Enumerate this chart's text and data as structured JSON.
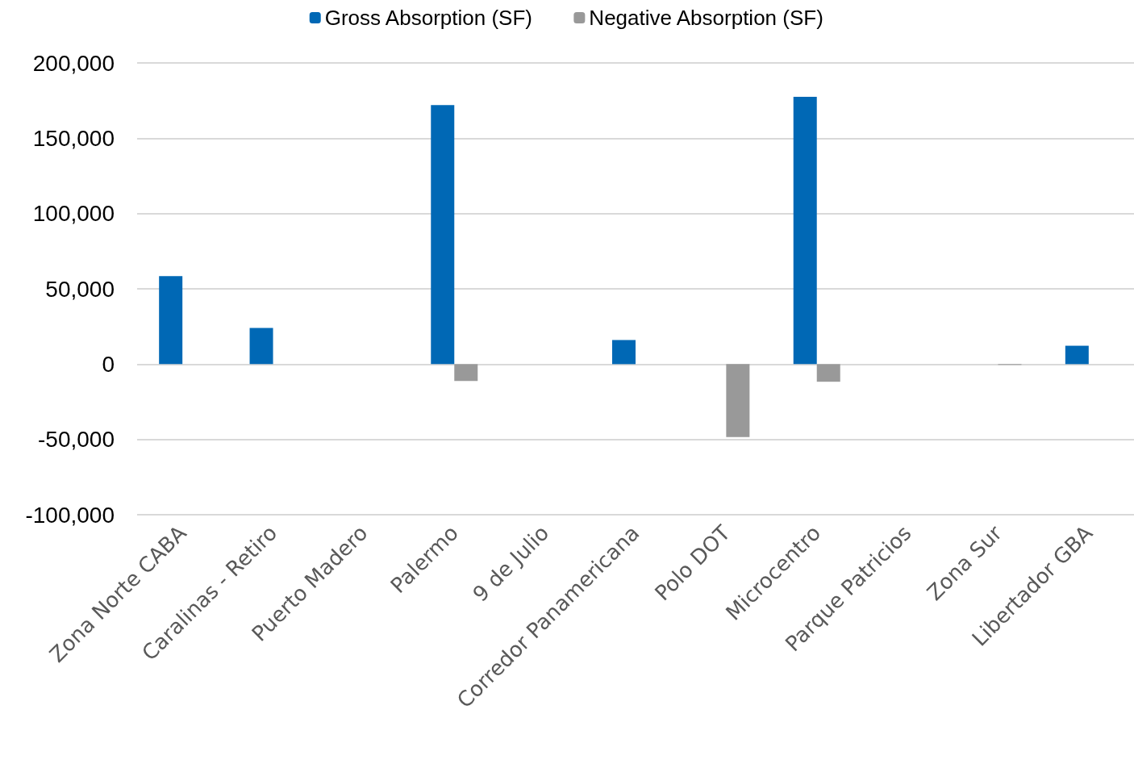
{
  "chart_data": {
    "type": "bar",
    "categories": [
      "Zona Norte CABA",
      "Caralinas - Retiro",
      "Puerto Madero",
      "Palermo",
      "9 de Julio",
      "Corredor Panamericana",
      "Polo DOT",
      "Microcentro",
      "Parque Patricios",
      "Zona Sur",
      "Libertador GBA"
    ],
    "series": [
      {
        "name": "Gross Absorption (SF)",
        "color": "#0068b5",
        "values": [
          58500,
          24000,
          0,
          172000,
          0,
          16000,
          0,
          177500,
          0,
          0,
          12200
        ]
      },
      {
        "name": "Negative Absorption (SF)",
        "color": "#999999",
        "values": [
          0,
          0,
          0,
          -11200,
          0,
          0,
          -48500,
          -11700,
          0,
          -500,
          0
        ]
      }
    ],
    "ylim": [
      -100000,
      200000
    ],
    "yticks": [
      {
        "value": -100000,
        "label": "-100,000"
      },
      {
        "value": -50000,
        "label": "-50,000"
      },
      0,
      {
        "value": 50000,
        "label": "50,000"
      },
      {
        "value": 100000,
        "label": "100,000"
      },
      {
        "value": 150000,
        "label": "150,000"
      },
      {
        "value": 200000,
        "label": "200,000"
      }
    ],
    "grid": "y",
    "legend": "top"
  }
}
